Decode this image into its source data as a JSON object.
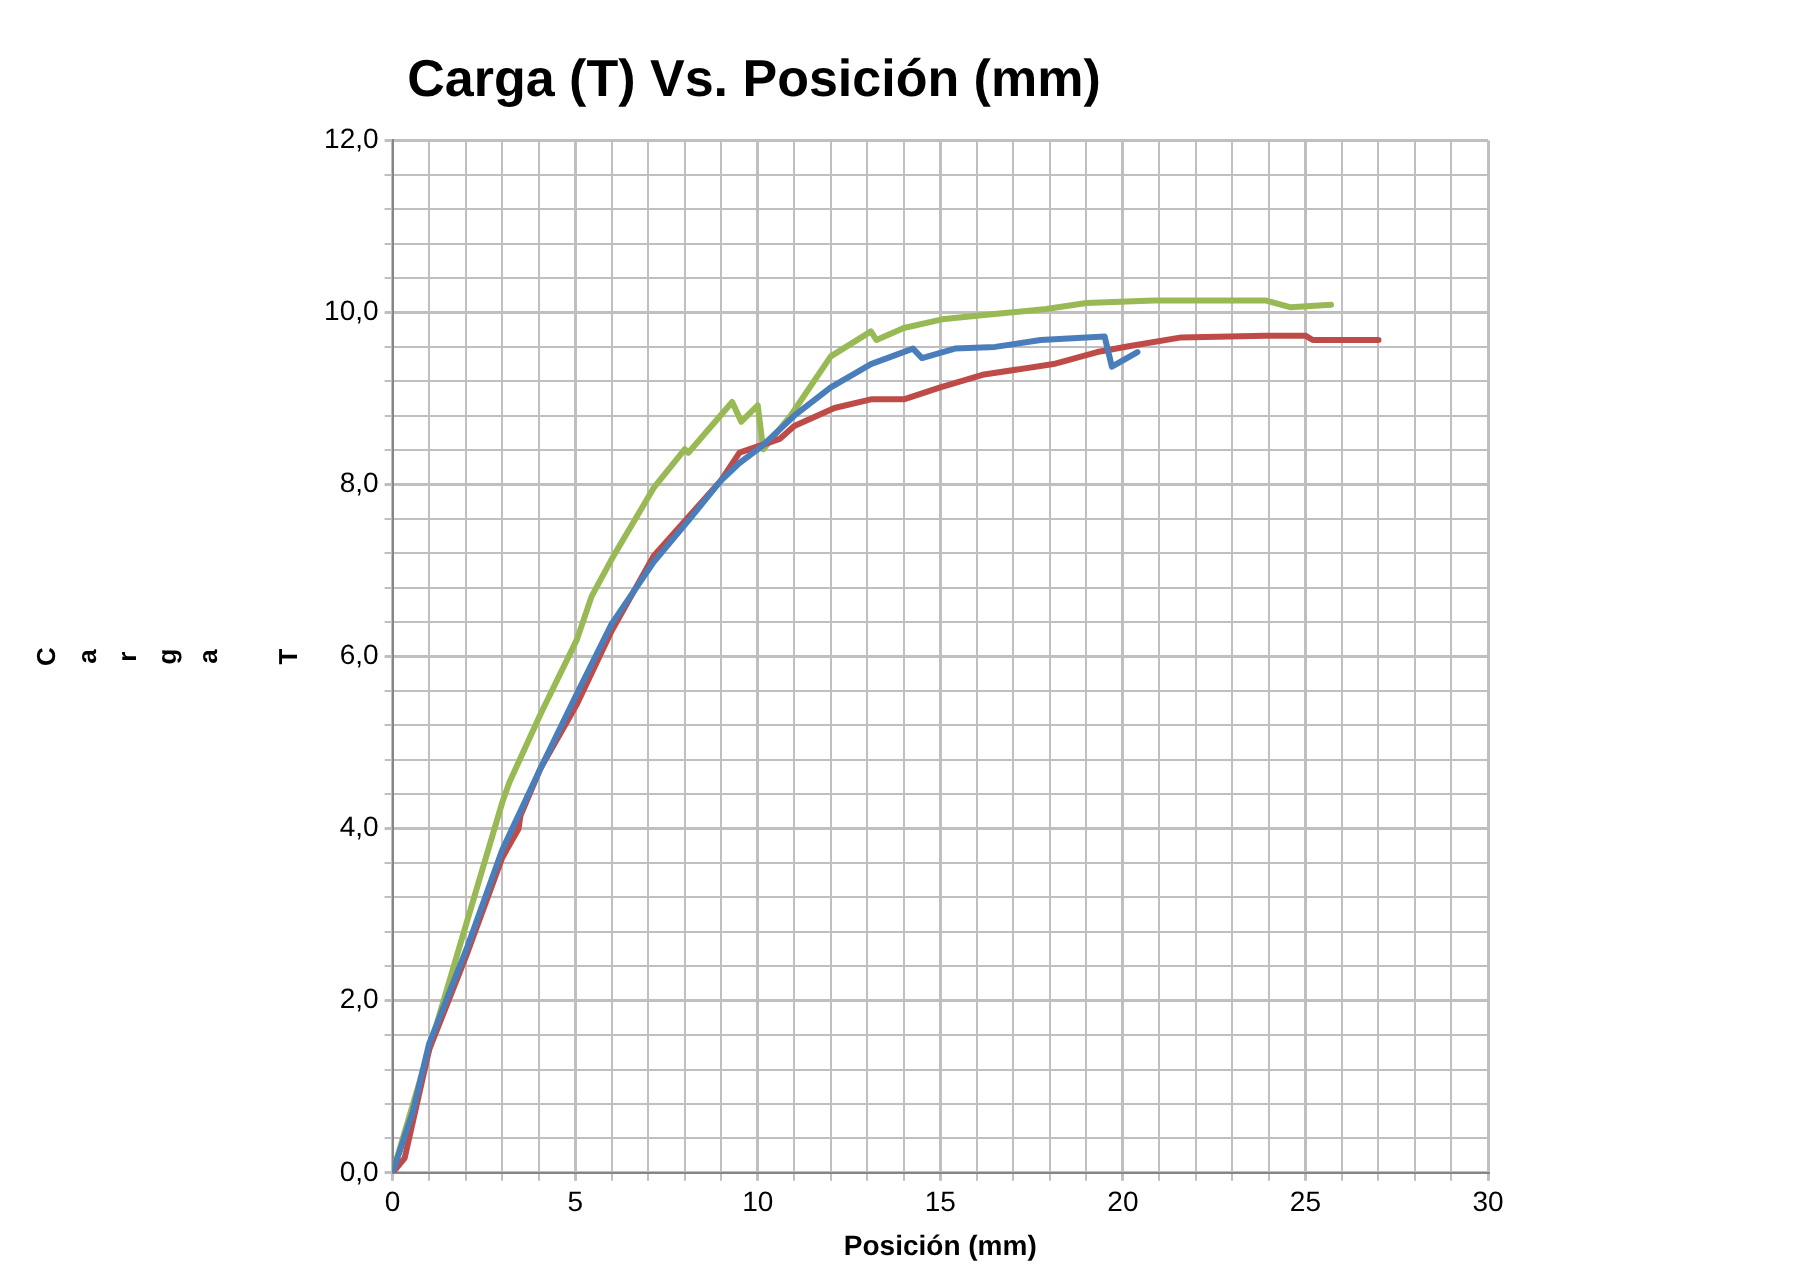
{
  "chart_data": {
    "type": "line",
    "title": "Carga (T) Vs. Posición (mm)",
    "xlabel": "Posición (mm)",
    "ylabel": "Carga T",
    "marker": "none",
    "line_style": "solid",
    "grid": true,
    "legend": false,
    "xlim": [
      0,
      30
    ],
    "ylim": [
      0,
      12
    ],
    "xticks": [
      0,
      {
        "value": 1,
        "label": null
      },
      {
        "value": 2,
        "label": null
      },
      {
        "value": 3,
        "label": null
      },
      {
        "value": 4,
        "label": null
      },
      5,
      {
        "value": 6,
        "label": null
      },
      {
        "value": 7,
        "label": null
      },
      {
        "value": 8,
        "label": null
      },
      {
        "value": 9,
        "label": null
      },
      10,
      {
        "value": 11,
        "label": null
      },
      {
        "value": 12,
        "label": null
      },
      {
        "value": 13,
        "label": null
      },
      {
        "value": 14,
        "label": null
      },
      15,
      {
        "value": 16,
        "label": null
      },
      {
        "value": 17,
        "label": null
      },
      {
        "value": 18,
        "label": null
      },
      {
        "value": 19,
        "label": null
      },
      20,
      {
        "value": 21,
        "label": null
      },
      {
        "value": 22,
        "label": null
      },
      {
        "value": 23,
        "label": null
      },
      {
        "value": 24,
        "label": null
      },
      25,
      {
        "value": 26,
        "label": null
      },
      {
        "value": 27,
        "label": null
      },
      {
        "value": 28,
        "label": null
      },
      {
        "value": 29,
        "label": null
      },
      30
    ],
    "yticks": [
      {
        "value": 0,
        "label": "0,0"
      },
      {
        "value": 0.4,
        "label": null
      },
      {
        "value": 0.8,
        "label": null
      },
      {
        "value": 1.2,
        "label": null
      },
      {
        "value": 1.6,
        "label": null
      },
      {
        "value": 2,
        "label": "2,0"
      },
      {
        "value": 2.4,
        "label": null
      },
      {
        "value": 2.8,
        "label": null
      },
      {
        "value": 3.2,
        "label": null
      },
      {
        "value": 3.6,
        "label": null
      },
      {
        "value": 4,
        "label": "4,0"
      },
      {
        "value": 4.4,
        "label": null
      },
      {
        "value": 4.8,
        "label": null
      },
      {
        "value": 5.2,
        "label": null
      },
      {
        "value": 5.6,
        "label": null
      },
      {
        "value": 6,
        "label": "6,0"
      },
      {
        "value": 6.4,
        "label": null
      },
      {
        "value": 6.8,
        "label": null
      },
      {
        "value": 7.2,
        "label": null
      },
      {
        "value": 7.6,
        "label": null
      },
      {
        "value": 8,
        "label": "8,0"
      },
      {
        "value": 8.4,
        "label": null
      },
      {
        "value": 8.8,
        "label": null
      },
      {
        "value": 9.2,
        "label": null
      },
      {
        "value": 9.6,
        "label": null
      },
      {
        "value": 10,
        "label": "10,0"
      },
      {
        "value": 10.4,
        "label": null
      },
      {
        "value": 10.8,
        "label": null
      },
      {
        "value": 11.2,
        "label": null
      },
      {
        "value": 11.6,
        "label": null
      },
      {
        "value": 12,
        "label": "12,0"
      }
    ],
    "series": [
      {
        "color": "#4a7ebb",
        "x": [
          0,
          0.56,
          1.0,
          2.05,
          3.0,
          4.05,
          5.05,
          6.0,
          7.15,
          8.1,
          9.0,
          9.5,
          10.1,
          11.0,
          12.0,
          13.1,
          14.25,
          14.5,
          15.4,
          16.5,
          17.75,
          19.5,
          19.7,
          20.4
        ],
        "values": [
          0,
          0.72,
          1.5,
          2.63,
          3.75,
          4.7,
          5.57,
          6.38,
          7.1,
          7.58,
          8.05,
          8.25,
          8.44,
          8.8,
          9.13,
          9.4,
          9.58,
          9.47,
          9.58,
          9.6,
          9.68,
          9.72,
          9.37,
          9.54
        ]
      },
      {
        "color": "#be4b48",
        "x": [
          0,
          0.33,
          1.0,
          2.05,
          3.0,
          3.45,
          3.5,
          4.05,
          5.05,
          6.0,
          7.15,
          9.0,
          9.5,
          10.6,
          11.0,
          12.1,
          13.1,
          14.0,
          15.0,
          16.2,
          18.1,
          19.3,
          20.2,
          21.6,
          23.9,
          25.0,
          25.2,
          27.0
        ],
        "values": [
          0,
          0.17,
          1.43,
          2.56,
          3.66,
          4.0,
          4.15,
          4.7,
          5.45,
          6.3,
          7.17,
          8.05,
          8.37,
          8.53,
          8.68,
          8.89,
          8.99,
          8.99,
          9.13,
          9.28,
          9.4,
          9.54,
          9.61,
          9.71,
          9.73,
          9.73,
          9.68,
          9.68
        ]
      },
      {
        "color": "#98b954",
        "x": [
          0,
          1.0,
          2.05,
          3.0,
          3.2,
          4.05,
          5.05,
          5.45,
          6.05,
          7.15,
          8.0,
          8.1,
          9.3,
          9.55,
          10.0,
          10.15,
          10.9,
          12.0,
          13.1,
          13.25,
          14.0,
          15.05,
          16.2,
          17.9,
          19.0,
          20.85,
          23.9,
          24.6,
          25.7
        ],
        "values": [
          0,
          1.43,
          2.94,
          4.3,
          4.54,
          5.33,
          6.2,
          6.7,
          7.17,
          7.96,
          8.41,
          8.37,
          8.96,
          8.73,
          8.92,
          8.41,
          8.8,
          9.49,
          9.78,
          9.68,
          9.82,
          9.92,
          9.97,
          10.04,
          10.11,
          10.14,
          10.14,
          10.06,
          10.09
        ]
      }
    ]
  }
}
